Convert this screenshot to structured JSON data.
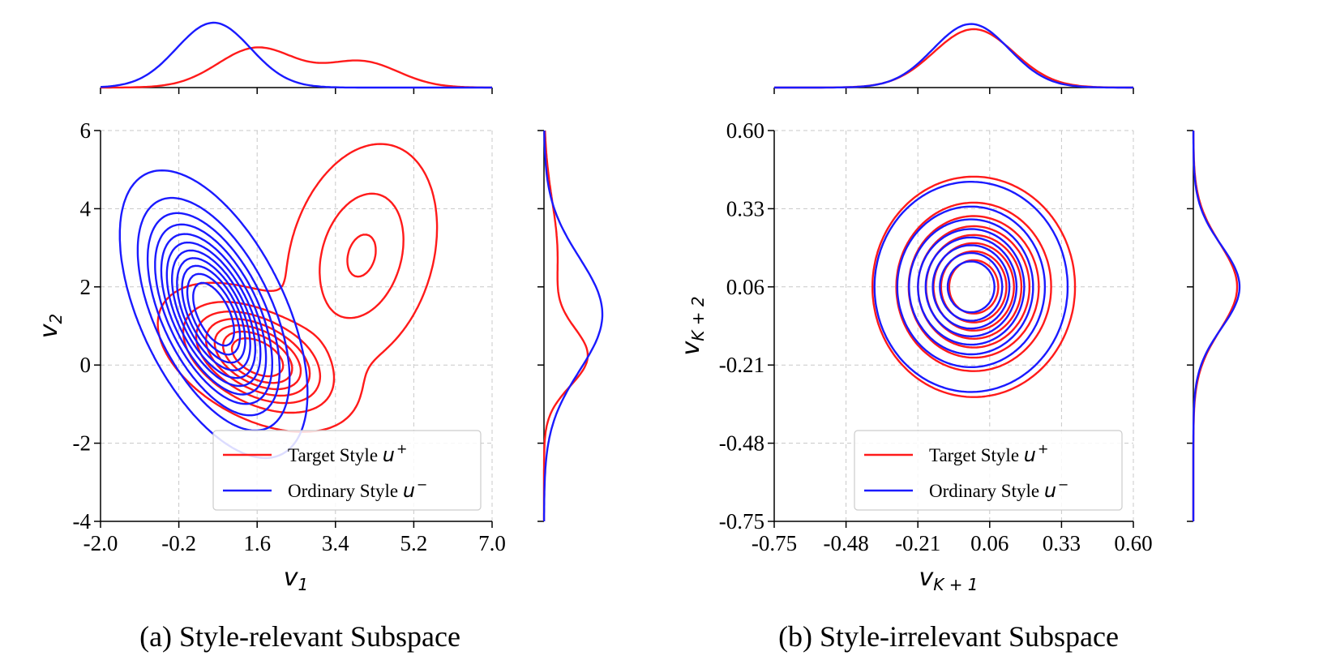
{
  "colors": {
    "target": "#ff1a1a",
    "ordinary": "#1a1aff"
  },
  "chart_data": [
    {
      "type": "scatter",
      "kind": "kde-joint-contour",
      "panel": "a",
      "caption": "(a) Style-relevant Subspace",
      "xlabel": {
        "base": "v",
        "sub": "1"
      },
      "ylabel": {
        "base": "v",
        "sub": "2"
      },
      "xlim": [
        -2.0,
        7.0
      ],
      "ylim": [
        -4,
        6
      ],
      "xticks": [
        "-2.0",
        "-0.2",
        "1.6",
        "3.4",
        "5.2",
        "7.0"
      ],
      "yticks": [
        "-4",
        "-2",
        "0",
        "2",
        "4",
        "6"
      ],
      "legend": {
        "position": "lower-right",
        "entries": [
          {
            "label": "Target Style ",
            "symbol": "u",
            "sup": "+",
            "color": "#ff1a1a"
          },
          {
            "label": "Ordinary Style ",
            "symbol": "u",
            "sup": "−",
            "color": "#1a1aff"
          }
        ]
      },
      "series": [
        {
          "name": "Target Style u+",
          "modes": [
            {
              "cx": 1.6,
              "cy": 0.2,
              "sx": 0.9,
              "sy": 0.75,
              "rho": -0.45,
              "w": 0.62
            },
            {
              "cx": 4.0,
              "cy": 2.8,
              "sx": 0.85,
              "sy": 1.4,
              "rho": 0.25,
              "w": 0.38
            }
          ],
          "levels": 7
        },
        {
          "name": "Ordinary Style u−",
          "modes": [
            {
              "cx": 0.6,
              "cy": 1.3,
              "sx": 0.85,
              "sy": 1.45,
              "rho": -0.55,
              "w": 1.0
            }
          ],
          "levels": 11
        }
      ]
    },
    {
      "type": "scatter",
      "kind": "kde-joint-contour",
      "panel": "b",
      "caption": "(b) Style-irrelevant Subspace",
      "xlabel": {
        "base": "v",
        "sub": "K + 1"
      },
      "ylabel": {
        "base": "v",
        "sub": "K + 2"
      },
      "xlim": [
        -0.75,
        0.6
      ],
      "ylim": [
        -0.75,
        0.6
      ],
      "xticks": [
        "-0.75",
        "-0.48",
        "-0.21",
        "0.06",
        "0.33",
        "0.60"
      ],
      "yticks": [
        "-0.75",
        "-0.48",
        "-0.21",
        "0.06",
        "0.33",
        "0.60"
      ],
      "legend": {
        "position": "lower-right",
        "entries": [
          {
            "label": "Target Style ",
            "symbol": "u",
            "sup": "+",
            "color": "#ff1a1a"
          },
          {
            "label": "Ordinary Style ",
            "symbol": "u",
            "sup": "−",
            "color": "#1a1aff"
          }
        ]
      },
      "series": [
        {
          "name": "Target Style u+",
          "modes": [
            {
              "cx": 0.0,
              "cy": 0.06,
              "sx": 0.15,
              "sy": 0.15,
              "rho": 0.0,
              "w": 1.0
            }
          ],
          "levels": 8
        },
        {
          "name": "Ordinary Style u−",
          "modes": [
            {
              "cx": -0.01,
              "cy": 0.06,
              "sx": 0.143,
              "sy": 0.143,
              "rho": 0.0,
              "w": 1.0
            }
          ],
          "levels": 8
        }
      ]
    }
  ]
}
